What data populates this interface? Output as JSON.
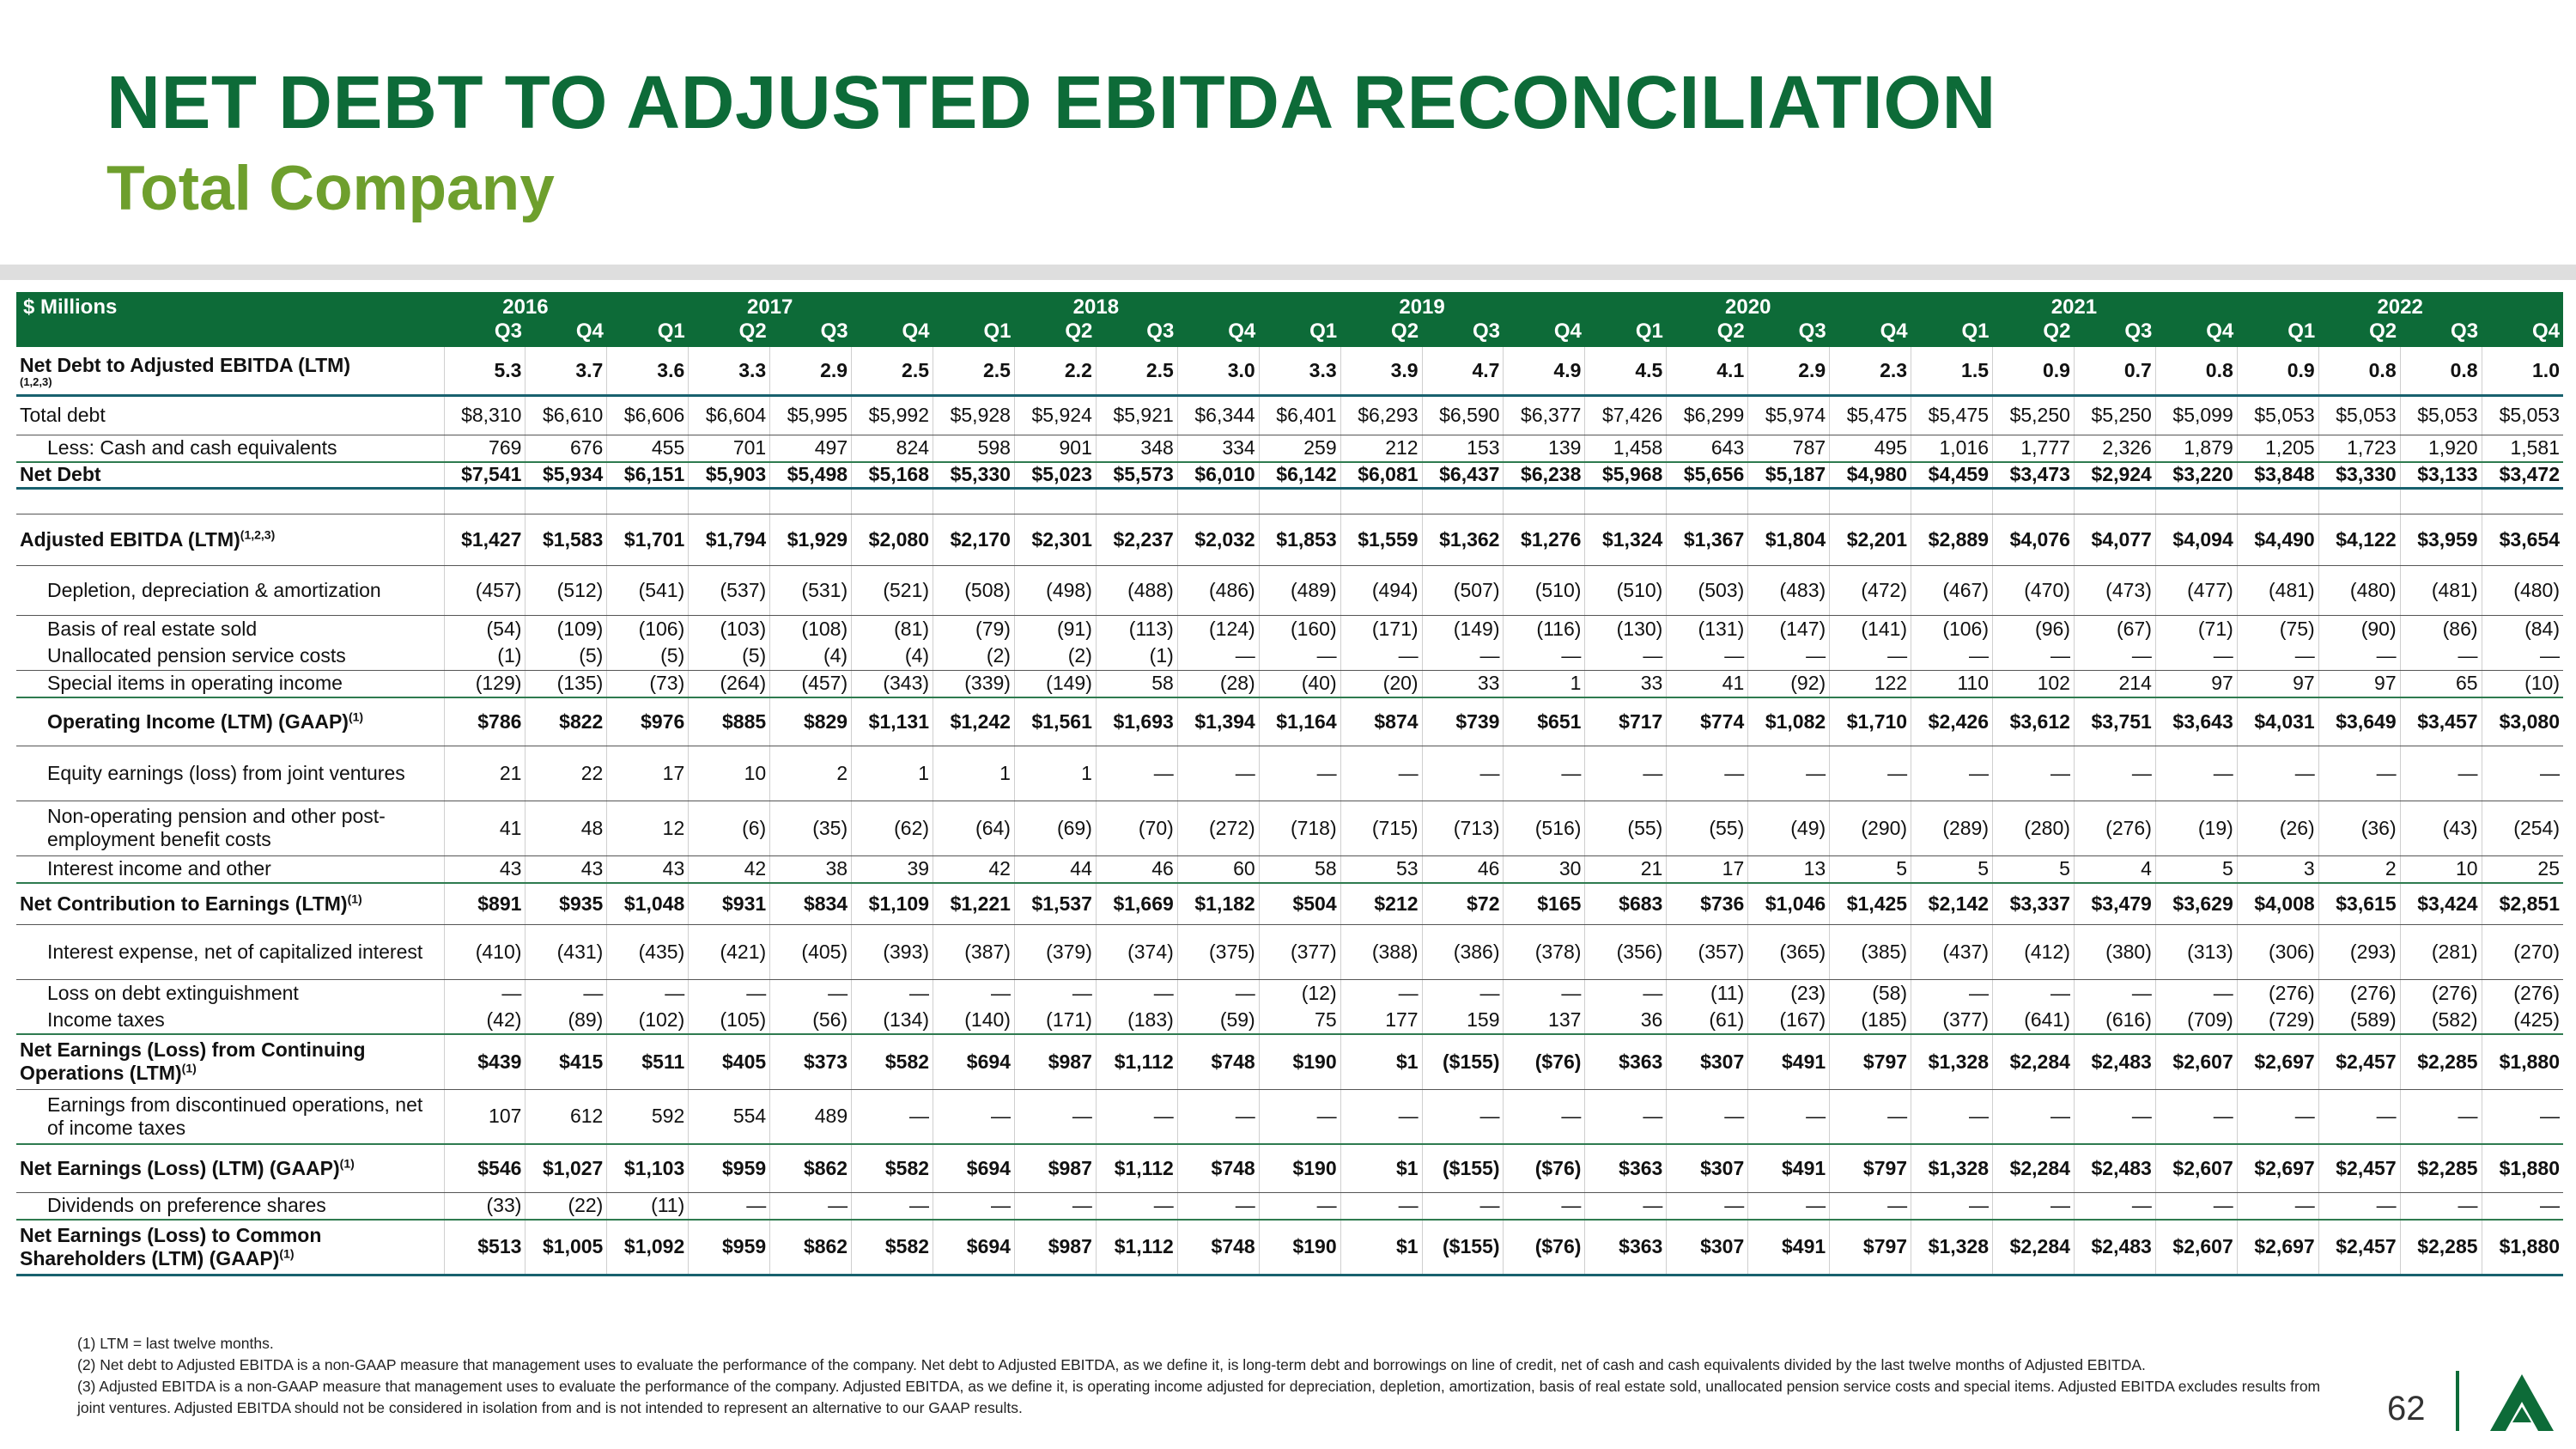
{
  "page": {
    "title": "NET DEBT TO ADJUSTED EBITDA RECONCILIATION",
    "subtitle": "Total Company",
    "page_number": "62"
  },
  "table": {
    "unit_label": "$ Millions",
    "year_groups": [
      {
        "year": "2016",
        "span": 2
      },
      {
        "year": "2017",
        "span": 4
      },
      {
        "year": "2018",
        "span": 4
      },
      {
        "year": "2019",
        "span": 4
      },
      {
        "year": "2020",
        "span": 4
      },
      {
        "year": "2021",
        "span": 4
      },
      {
        "year": "2022",
        "span": 4
      }
    ],
    "quarters": [
      "Q3",
      "Q4",
      "Q1",
      "Q2",
      "Q3",
      "Q4",
      "Q1",
      "Q2",
      "Q3",
      "Q4",
      "Q1",
      "Q2",
      "Q3",
      "Q4",
      "Q1",
      "Q2",
      "Q3",
      "Q4",
      "Q1",
      "Q2",
      "Q3",
      "Q4",
      "Q1",
      "Q2",
      "Q3",
      "Q4"
    ],
    "rows": [
      {
        "label": "Net Debt to Adjusted EBITDA (LTM)",
        "note": "(1,2,3)",
        "bold": true,
        "h": 56,
        "border": "thick",
        "values": [
          "5.3",
          "3.7",
          "3.6",
          "3.3",
          "2.9",
          "2.5",
          "2.5",
          "2.2",
          "2.5",
          "3.0",
          "3.3",
          "3.9",
          "4.7",
          "4.9",
          "4.5",
          "4.1",
          "2.9",
          "2.3",
          "1.5",
          "0.9",
          "0.7",
          "0.8",
          "0.9",
          "0.8",
          "0.8",
          "1.0"
        ]
      },
      {
        "label": "Total debt",
        "indent": 0,
        "h": 46,
        "border": "thin",
        "values": [
          "$8,310",
          "$6,610",
          "$6,606",
          "$6,604",
          "$5,995",
          "$5,992",
          "$5,928",
          "$5,924",
          "$5,921",
          "$6,344",
          "$6,401",
          "$6,293",
          "$6,590",
          "$6,377",
          "$7,426",
          "$6,299",
          "$5,974",
          "$5,475",
          "$5,475",
          "$5,250",
          "$5,250",
          "$5,099",
          "$5,053",
          "$5,053",
          "$5,053",
          "$5,053"
        ]
      },
      {
        "label": "Less: Cash and cash equivalents",
        "indent": 1,
        "h": 32,
        "border": "green",
        "values": [
          "769",
          "676",
          "455",
          "701",
          "497",
          "824",
          "598",
          "901",
          "348",
          "334",
          "259",
          "212",
          "153",
          "139",
          "1,458",
          "643",
          "787",
          "495",
          "1,016",
          "1,777",
          "2,326",
          "1,879",
          "1,205",
          "1,723",
          "1,920",
          "1,581"
        ]
      },
      {
        "label": "Net Debt",
        "bold": true,
        "h": 30,
        "border": "thick",
        "values": [
          "$7,541",
          "$5,934",
          "$6,151",
          "$5,903",
          "$5,498",
          "$5,168",
          "$5,330",
          "$5,023",
          "$5,573",
          "$6,010",
          "$6,142",
          "$6,081",
          "$6,437",
          "$6,238",
          "$5,968",
          "$5,656",
          "$5,187",
          "$4,980",
          "$4,459",
          "$3,473",
          "$2,924",
          "$3,220",
          "$3,848",
          "$3,330",
          "$3,133",
          "$3,472"
        ]
      },
      {
        "label": "",
        "h": 30,
        "border": "thin",
        "values": [
          "",
          "",
          "",
          "",
          "",
          "",
          "",
          "",
          "",
          "",
          "",
          "",
          "",
          "",
          "",
          "",
          "",
          "",
          "",
          "",
          "",
          "",
          "",
          "",
          "",
          ""
        ]
      },
      {
        "label": "Adjusted EBITDA (LTM)",
        "sup": "(1,2,3)",
        "bold": true,
        "h": 60,
        "border": "thin",
        "values": [
          "$1,427",
          "$1,583",
          "$1,701",
          "$1,794",
          "$1,929",
          "$2,080",
          "$2,170",
          "$2,301",
          "$2,237",
          "$2,032",
          "$1,853",
          "$1,559",
          "$1,362",
          "$1,276",
          "$1,324",
          "$1,367",
          "$1,804",
          "$2,201",
          "$2,889",
          "$4,076",
          "$4,077",
          "$4,094",
          "$4,490",
          "$4,122",
          "$3,959",
          "$3,654"
        ]
      },
      {
        "label": "Depletion, depreciation & amortization",
        "indent": 1,
        "h": 58,
        "border": "thin",
        "values": [
          "(457)",
          "(512)",
          "(541)",
          "(537)",
          "(531)",
          "(521)",
          "(508)",
          "(498)",
          "(488)",
          "(486)",
          "(489)",
          "(494)",
          "(507)",
          "(510)",
          "(510)",
          "(503)",
          "(483)",
          "(472)",
          "(467)",
          "(470)",
          "(473)",
          "(477)",
          "(481)",
          "(480)",
          "(481)",
          "(480)"
        ]
      },
      {
        "label": "Basis of real estate sold",
        "indent": 1,
        "h": 32,
        "border": "",
        "values": [
          "(54)",
          "(109)",
          "(106)",
          "(103)",
          "(108)",
          "(81)",
          "(79)",
          "(91)",
          "(113)",
          "(124)",
          "(160)",
          "(171)",
          "(149)",
          "(116)",
          "(130)",
          "(131)",
          "(147)",
          "(141)",
          "(106)",
          "(96)",
          "(67)",
          "(71)",
          "(75)",
          "(90)",
          "(86)",
          "(84)"
        ]
      },
      {
        "label": "Unallocated pension service costs",
        "indent": 1,
        "h": 32,
        "border": "thin",
        "values": [
          "(1)",
          "(5)",
          "(5)",
          "(5)",
          "(4)",
          "(4)",
          "(2)",
          "(2)",
          "(1)",
          "—",
          "—",
          "—",
          "—",
          "—",
          "—",
          "—",
          "—",
          "—",
          "—",
          "—",
          "—",
          "—",
          "—",
          "—",
          "—",
          "—"
        ]
      },
      {
        "label": "Special items in operating income",
        "indent": 1,
        "h": 32,
        "border": "green",
        "values": [
          "(129)",
          "(135)",
          "(73)",
          "(264)",
          "(457)",
          "(343)",
          "(339)",
          "(149)",
          "58",
          "(28)",
          "(40)",
          "(20)",
          "33",
          "1",
          "33",
          "41",
          "(92)",
          "122",
          "110",
          "102",
          "214",
          "97",
          "97",
          "97",
          "65",
          "(10)"
        ]
      },
      {
        "label": "Operating Income (LTM) (GAAP)",
        "sup": "(1)",
        "bold": true,
        "indent": 1,
        "h": 56,
        "border": "thin",
        "values": [
          "$786",
          "$822",
          "$976",
          "$885",
          "$829",
          "$1,131",
          "$1,242",
          "$1,561",
          "$1,693",
          "$1,394",
          "$1,164",
          "$874",
          "$739",
          "$651",
          "$717",
          "$774",
          "$1,082",
          "$1,710",
          "$2,426",
          "$3,612",
          "$3,751",
          "$3,643",
          "$4,031",
          "$3,649",
          "$3,457",
          "$3,080"
        ]
      },
      {
        "label": "Equity earnings (loss) from joint ventures",
        "indent": 1,
        "wrap": true,
        "h": 64,
        "border": "thin",
        "values": [
          "21",
          "22",
          "17",
          "10",
          "2",
          "1",
          "1",
          "1",
          "—",
          "—",
          "—",
          "—",
          "—",
          "—",
          "—",
          "—",
          "—",
          "—",
          "—",
          "—",
          "—",
          "—",
          "—",
          "—",
          "—",
          "—"
        ]
      },
      {
        "label": "Non-operating pension and other post-employment benefit costs",
        "indent": 1,
        "wrap": true,
        "h": 64,
        "border": "thin",
        "values": [
          "41",
          "48",
          "12",
          "(6)",
          "(35)",
          "(62)",
          "(64)",
          "(69)",
          "(70)",
          "(272)",
          "(718)",
          "(715)",
          "(713)",
          "(516)",
          "(55)",
          "(55)",
          "(49)",
          "(290)",
          "(289)",
          "(280)",
          "(276)",
          "(19)",
          "(26)",
          "(36)",
          "(43)",
          "(254)"
        ]
      },
      {
        "label": "Interest income and other",
        "indent": 1,
        "h": 32,
        "border": "green",
        "values": [
          "43",
          "43",
          "43",
          "42",
          "38",
          "39",
          "42",
          "44",
          "46",
          "60",
          "58",
          "53",
          "46",
          "30",
          "21",
          "17",
          "13",
          "5",
          "5",
          "5",
          "4",
          "5",
          "3",
          "2",
          "10",
          "25"
        ]
      },
      {
        "label": "Net Contribution to Earnings (LTM)",
        "sup": "(1)",
        "bold": true,
        "h": 48,
        "border": "thin",
        "values": [
          "$891",
          "$935",
          "$1,048",
          "$931",
          "$834",
          "$1,109",
          "$1,221",
          "$1,537",
          "$1,669",
          "$1,182",
          "$504",
          "$212",
          "$72",
          "$165",
          "$683",
          "$736",
          "$1,046",
          "$1,425",
          "$2,142",
          "$3,337",
          "$3,479",
          "$3,629",
          "$4,008",
          "$3,615",
          "$3,424",
          "$2,851"
        ]
      },
      {
        "label": "Interest expense, net of capitalized interest",
        "indent": 1,
        "wrap": true,
        "h": 64,
        "border": "thin",
        "values": [
          "(410)",
          "(431)",
          "(435)",
          "(421)",
          "(405)",
          "(393)",
          "(387)",
          "(379)",
          "(374)",
          "(375)",
          "(377)",
          "(388)",
          "(386)",
          "(378)",
          "(356)",
          "(357)",
          "(365)",
          "(385)",
          "(437)",
          "(412)",
          "(380)",
          "(313)",
          "(306)",
          "(293)",
          "(281)",
          "(270)"
        ]
      },
      {
        "label": "Loss on debt extinguishment",
        "indent": 1,
        "h": 32,
        "border": "",
        "values": [
          "—",
          "—",
          "—",
          "—",
          "—",
          "—",
          "—",
          "—",
          "—",
          "—",
          "(12)",
          "—",
          "—",
          "—",
          "—",
          "(11)",
          "(23)",
          "(58)",
          "—",
          "—",
          "—",
          "—",
          "(276)",
          "(276)",
          "(276)",
          "(276)"
        ]
      },
      {
        "label": "Income taxes",
        "indent": 1,
        "h": 32,
        "border": "green",
        "values": [
          "(42)",
          "(89)",
          "(102)",
          "(105)",
          "(56)",
          "(134)",
          "(140)",
          "(171)",
          "(183)",
          "(59)",
          "75",
          "177",
          "159",
          "137",
          "36",
          "(61)",
          "(167)",
          "(185)",
          "(377)",
          "(641)",
          "(616)",
          "(709)",
          "(729)",
          "(589)",
          "(582)",
          "(425)"
        ]
      },
      {
        "label": "Net Earnings (Loss) from Continuing Operations (LTM)",
        "sup": "(1)",
        "bold": true,
        "wrap": true,
        "h": 64,
        "border": "thin",
        "values": [
          "$439",
          "$415",
          "$511",
          "$405",
          "$373",
          "$582",
          "$694",
          "$987",
          "$1,112",
          "$748",
          "$190",
          "$1",
          "($155)",
          "($76)",
          "$363",
          "$307",
          "$491",
          "$797",
          "$1,328",
          "$2,284",
          "$2,483",
          "$2,607",
          "$2,697",
          "$2,457",
          "$2,285",
          "$1,880"
        ]
      },
      {
        "label": "Earnings from discontinued operations, net of income taxes",
        "indent": 1,
        "wrap": true,
        "h": 64,
        "border": "green",
        "values": [
          "107",
          "612",
          "592",
          "554",
          "489",
          "—",
          "—",
          "—",
          "—",
          "—",
          "—",
          "—",
          "—",
          "—",
          "—",
          "—",
          "—",
          "—",
          "—",
          "—",
          "—",
          "—",
          "—",
          "—",
          "—",
          "—"
        ]
      },
      {
        "label": "Net Earnings (Loss) (LTM) (GAAP)",
        "sup": "(1)",
        "bold": true,
        "h": 56,
        "border": "thin",
        "values": [
          "$546",
          "$1,027",
          "$1,103",
          "$959",
          "$862",
          "$582",
          "$694",
          "$987",
          "$1,112",
          "$748",
          "$190",
          "$1",
          "($155)",
          "($76)",
          "$363",
          "$307",
          "$491",
          "$797",
          "$1,328",
          "$2,284",
          "$2,483",
          "$2,607",
          "$2,697",
          "$2,457",
          "$2,285",
          "$1,880"
        ]
      },
      {
        "label": "Dividends on preference shares",
        "indent": 1,
        "h": 32,
        "border": "green",
        "values": [
          "(33)",
          "(22)",
          "(11)",
          "—",
          "—",
          "—",
          "—",
          "—",
          "—",
          "—",
          "—",
          "—",
          "—",
          "—",
          "—",
          "—",
          "—",
          "—",
          "—",
          "—",
          "—",
          "—",
          "—",
          "—",
          "—",
          "—"
        ]
      },
      {
        "label": "Net Earnings (Loss) to Common Shareholders (LTM) (GAAP)",
        "sup": "(1)",
        "bold": true,
        "wrap": true,
        "h": 64,
        "border": "thick",
        "values": [
          "$513",
          "$1,005",
          "$1,092",
          "$959",
          "$862",
          "$582",
          "$694",
          "$987",
          "$1,112",
          "$748",
          "$190",
          "$1",
          "($155)",
          "($76)",
          "$363",
          "$307",
          "$491",
          "$797",
          "$1,328",
          "$2,284",
          "$2,483",
          "$2,607",
          "$2,697",
          "$2,457",
          "$2,285",
          "$1,880"
        ]
      }
    ]
  },
  "footnotes": [
    "(1) LTM = last twelve months.",
    "(2) Net debt to Adjusted EBITDA is a non-GAAP measure that management uses to evaluate the performance of the company. Net debt to Adjusted EBITDA, as we define it, is long-term debt and borrowings on line of credit, net of cash and cash equivalents divided by the last twelve months of Adjusted EBITDA.",
    "(3) Adjusted EBITDA is a non-GAAP measure that management uses to evaluate the performance of the company. Adjusted EBITDA, as we define it, is operating income adjusted for depreciation, depletion, amortization, basis of real estate sold, unallocated pension service costs and special items. Adjusted EBITDA excludes results from joint ventures. Adjusted EBITDA should not be considered in isolation from and is not intended to represent an alternative to our GAAP results."
  ],
  "colors": {
    "brand_green": "#0d6b38",
    "subtitle_green": "#6e9f2d",
    "rule_teal": "#18616e"
  }
}
